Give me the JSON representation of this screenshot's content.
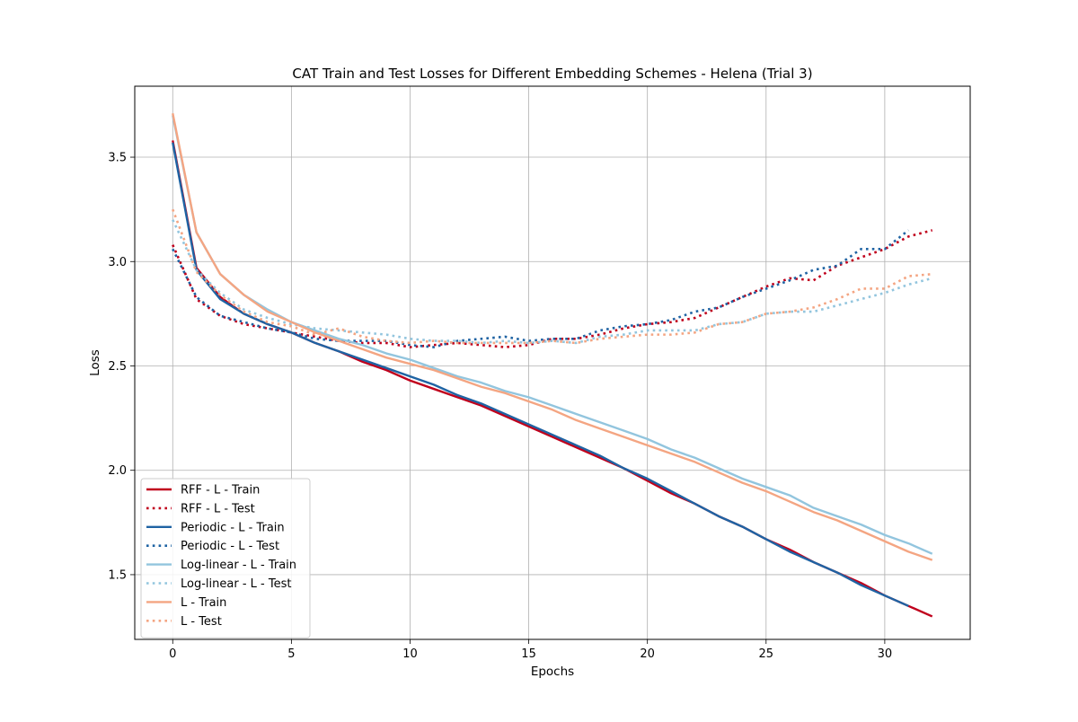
{
  "chart_data": {
    "type": "line",
    "title": "CAT Train and Test Losses for Different Embedding Schemes - Helena (Trial 3)",
    "xlabel": "Epochs",
    "ylabel": "Loss",
    "xlim": [
      -1.6,
      33.6
    ],
    "ylim": [
      1.19,
      3.84
    ],
    "xticks": [
      0,
      5,
      10,
      15,
      20,
      25,
      30
    ],
    "yticks": [
      1.5,
      2.0,
      2.5,
      3.0,
      3.5
    ],
    "ytick_labels": [
      "1.5",
      "2.0",
      "2.5",
      "3.0",
      "3.5"
    ],
    "grid": true,
    "legend_position": "lower left",
    "series": [
      {
        "name": "RFF - L - Train",
        "color": "#c0001c",
        "style": "solid",
        "x": [
          0,
          1,
          2,
          3,
          4,
          5,
          6,
          7,
          8,
          9,
          10,
          11,
          12,
          13,
          14,
          15,
          16,
          17,
          18,
          19,
          20,
          21,
          22,
          23,
          24,
          25,
          26,
          27,
          28,
          29,
          30,
          31,
          32
        ],
        "values": [
          3.58,
          2.97,
          2.83,
          2.75,
          2.7,
          2.66,
          2.61,
          2.57,
          2.52,
          2.48,
          2.43,
          2.39,
          2.35,
          2.31,
          2.26,
          2.21,
          2.16,
          2.11,
          2.06,
          2.01,
          1.95,
          1.89,
          1.84,
          1.78,
          1.73,
          1.67,
          1.62,
          1.56,
          1.51,
          1.46,
          1.4,
          1.35,
          1.3
        ]
      },
      {
        "name": "RFF - L - Test",
        "color": "#c0001c",
        "style": "dotted",
        "x": [
          0,
          1,
          2,
          3,
          4,
          5,
          6,
          7,
          8,
          9,
          10,
          11,
          12,
          13,
          14,
          15,
          16,
          17,
          18,
          19,
          20,
          21,
          22,
          23,
          24,
          25,
          26,
          27,
          28,
          29,
          30,
          31,
          32
        ],
        "values": [
          3.08,
          2.82,
          2.74,
          2.7,
          2.68,
          2.66,
          2.64,
          2.62,
          2.61,
          2.61,
          2.59,
          2.6,
          2.61,
          2.6,
          2.59,
          2.6,
          2.63,
          2.63,
          2.65,
          2.68,
          2.7,
          2.71,
          2.73,
          2.78,
          2.83,
          2.88,
          2.92,
          2.91,
          2.98,
          3.02,
          3.06,
          3.12,
          3.15
        ]
      },
      {
        "name": "Periodic - L - Train",
        "color": "#1f63a3",
        "style": "solid",
        "x": [
          0,
          1,
          2,
          3,
          4,
          5,
          6,
          7,
          8,
          9,
          10,
          11,
          12,
          13,
          14,
          15,
          16,
          17,
          18,
          19,
          20,
          21,
          22,
          23,
          24,
          25,
          26,
          27,
          28,
          29,
          30,
          31
        ],
        "values": [
          3.57,
          2.96,
          2.82,
          2.75,
          2.7,
          2.66,
          2.61,
          2.57,
          2.53,
          2.49,
          2.45,
          2.41,
          2.36,
          2.32,
          2.27,
          2.22,
          2.17,
          2.12,
          2.07,
          2.01,
          1.96,
          1.9,
          1.84,
          1.78,
          1.73,
          1.67,
          1.61,
          1.56,
          1.51,
          1.45,
          1.4,
          1.35
        ]
      },
      {
        "name": "Periodic - L - Test",
        "color": "#1f63a3",
        "style": "dotted",
        "x": [
          0,
          1,
          2,
          3,
          4,
          5,
          6,
          7,
          8,
          9,
          10,
          11,
          12,
          13,
          14,
          15,
          16,
          17,
          18,
          19,
          20,
          21,
          22,
          23,
          24,
          25,
          26,
          27,
          28,
          29,
          30,
          31
        ],
        "values": [
          3.06,
          2.83,
          2.74,
          2.71,
          2.68,
          2.66,
          2.63,
          2.62,
          2.62,
          2.62,
          2.6,
          2.59,
          2.62,
          2.63,
          2.64,
          2.62,
          2.63,
          2.63,
          2.67,
          2.69,
          2.7,
          2.72,
          2.76,
          2.78,
          2.83,
          2.87,
          2.91,
          2.96,
          2.98,
          3.06,
          3.06,
          3.15
        ]
      },
      {
        "name": "Log-linear - L - Train",
        "color": "#92c5de",
        "style": "solid",
        "x": [
          0,
          1,
          2,
          3,
          4,
          5,
          6,
          7,
          8,
          9,
          10,
          11,
          12,
          13,
          14,
          15,
          16,
          17,
          18,
          19,
          20,
          21,
          22,
          23,
          24,
          25,
          26,
          27,
          28,
          29,
          30,
          31,
          32
        ],
        "values": [
          3.7,
          3.14,
          2.94,
          2.84,
          2.77,
          2.71,
          2.67,
          2.63,
          2.6,
          2.56,
          2.53,
          2.49,
          2.45,
          2.42,
          2.38,
          2.35,
          2.31,
          2.27,
          2.23,
          2.19,
          2.15,
          2.1,
          2.06,
          2.01,
          1.96,
          1.92,
          1.88,
          1.82,
          1.78,
          1.74,
          1.69,
          1.65,
          1.6
        ]
      },
      {
        "name": "Log-linear - L - Test",
        "color": "#92c5de",
        "style": "dotted",
        "x": [
          0,
          1,
          2,
          3,
          4,
          5,
          6,
          7,
          8,
          9,
          10,
          11,
          12,
          13,
          14,
          15,
          16,
          17,
          18,
          19,
          20,
          21,
          22,
          23,
          24,
          25,
          26,
          27,
          28,
          29,
          30,
          31,
          32
        ],
        "values": [
          3.2,
          2.96,
          2.85,
          2.77,
          2.73,
          2.7,
          2.68,
          2.67,
          2.66,
          2.65,
          2.63,
          2.62,
          2.62,
          2.61,
          2.62,
          2.61,
          2.62,
          2.61,
          2.64,
          2.65,
          2.67,
          2.67,
          2.67,
          2.7,
          2.71,
          2.75,
          2.76,
          2.76,
          2.79,
          2.82,
          2.85,
          2.89,
          2.92
        ]
      },
      {
        "name": "L - Train",
        "color": "#f4a582",
        "style": "solid",
        "x": [
          0,
          1,
          2,
          3,
          4,
          5,
          6,
          7,
          8,
          9,
          10,
          11,
          12,
          13,
          14,
          15,
          16,
          17,
          18,
          19,
          20,
          21,
          22,
          23,
          24,
          25,
          26,
          27,
          28,
          29,
          30,
          31,
          32
        ],
        "values": [
          3.71,
          3.14,
          2.94,
          2.84,
          2.76,
          2.71,
          2.66,
          2.62,
          2.58,
          2.54,
          2.51,
          2.48,
          2.44,
          2.4,
          2.37,
          2.33,
          2.29,
          2.24,
          2.2,
          2.16,
          2.12,
          2.08,
          2.04,
          1.99,
          1.94,
          1.9,
          1.85,
          1.8,
          1.76,
          1.71,
          1.66,
          1.61,
          1.57
        ]
      },
      {
        "name": "L - Test",
        "color": "#f4a582",
        "style": "dotted",
        "x": [
          0,
          1,
          2,
          3,
          4,
          5,
          6,
          7,
          8,
          9,
          10,
          11,
          12,
          13,
          14,
          15,
          16,
          17,
          18,
          19,
          20,
          21,
          22,
          23,
          24,
          25,
          26,
          27,
          28,
          29,
          30,
          31,
          32
        ],
        "values": [
          3.25,
          2.95,
          2.84,
          2.76,
          2.71,
          2.69,
          2.65,
          2.68,
          2.64,
          2.62,
          2.61,
          2.62,
          2.61,
          2.61,
          2.61,
          2.61,
          2.62,
          2.61,
          2.63,
          2.64,
          2.65,
          2.65,
          2.66,
          2.7,
          2.71,
          2.75,
          2.76,
          2.78,
          2.82,
          2.87,
          2.87,
          2.93,
          2.94
        ]
      }
    ]
  }
}
